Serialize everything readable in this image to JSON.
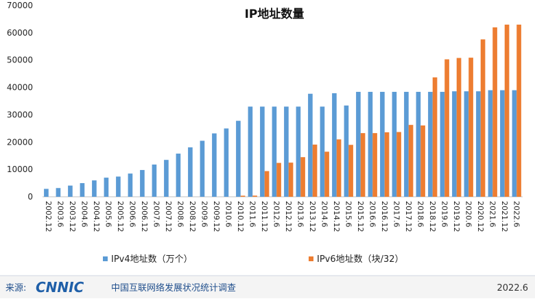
{
  "chart_data": {
    "type": "bar",
    "title": "IP地址数量",
    "categories": [
      "2002.12",
      "2003.6",
      "2003.12",
      "2004.6",
      "2004.12",
      "2005.6",
      "2005.12",
      "2006.6",
      "2006.12",
      "2007.6",
      "2007.12",
      "2008.6",
      "2008.12",
      "2009.6",
      "2009.12",
      "2010.6",
      "2010.12",
      "2011.6",
      "2011.12",
      "2012.6",
      "2012.12",
      "2013.6",
      "2013.12",
      "2014.6",
      "2014.12",
      "2015.6",
      "2015.12",
      "2016.6",
      "2016.12",
      "2017.6",
      "2017.12",
      "2018.6",
      "2018.12",
      "2019.6",
      "2019.12",
      "2020.6",
      "2020.12",
      "2021.6",
      "2021.12",
      "2022.6"
    ],
    "series": [
      {
        "name": "IPv4地址数（万个）",
        "color": "#5b9bd5",
        "values": [
          2900,
          3200,
          4100,
          5000,
          6000,
          7000,
          7400,
          8500,
          9800,
          11800,
          13500,
          15800,
          18100,
          20500,
          23200,
          25000,
          27800,
          33000,
          33000,
          33000,
          33000,
          33000,
          37700,
          33000,
          37900,
          33400,
          38400,
          38400,
          38400,
          38400,
          38400,
          38400,
          38400,
          38400,
          38600,
          38600,
          38600,
          39000,
          39000,
          39000
        ]
      },
      {
        "name": "IPv6地址数（块/32）",
        "color": "#ed7d31",
        "values": [
          0,
          0,
          0,
          0,
          0,
          0,
          0,
          0,
          0,
          0,
          0,
          0,
          0,
          0,
          0,
          0,
          400,
          429,
          9400,
          12400,
          12500,
          14500,
          19100,
          16500,
          21000,
          19000,
          23300,
          23300,
          23600,
          23700,
          26300,
          26100,
          43700,
          50300,
          50800,
          50900,
          57600,
          62000,
          63000,
          63000
        ]
      }
    ],
    "ylim": [
      0,
      70000
    ],
    "yticks": [
      0,
      10000,
      20000,
      30000,
      40000,
      50000,
      60000,
      70000
    ],
    "grid": false,
    "legend": "bottom"
  },
  "footer": {
    "source_label": "来源:",
    "logo": "CNNIC",
    "org": "中国互联网络发展状况统计调查",
    "date": "2022.6"
  }
}
